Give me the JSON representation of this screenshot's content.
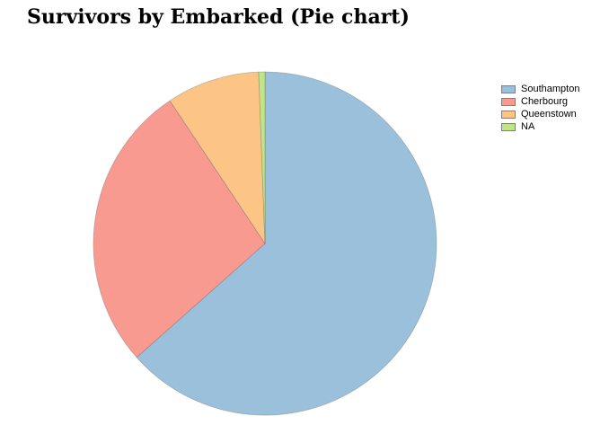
{
  "chart_data": {
    "type": "pie",
    "title": "Survivors by Embarked (Pie chart)",
    "categories": [
      "Southampton",
      "Cherbourg",
      "Queenstown",
      "NA"
    ],
    "values": [
      217,
      93,
      30,
      2
    ],
    "colors": [
      "#9ac0db",
      "#f89a8f",
      "#fdc585",
      "#c0e589"
    ],
    "legend_position": "top-right"
  }
}
